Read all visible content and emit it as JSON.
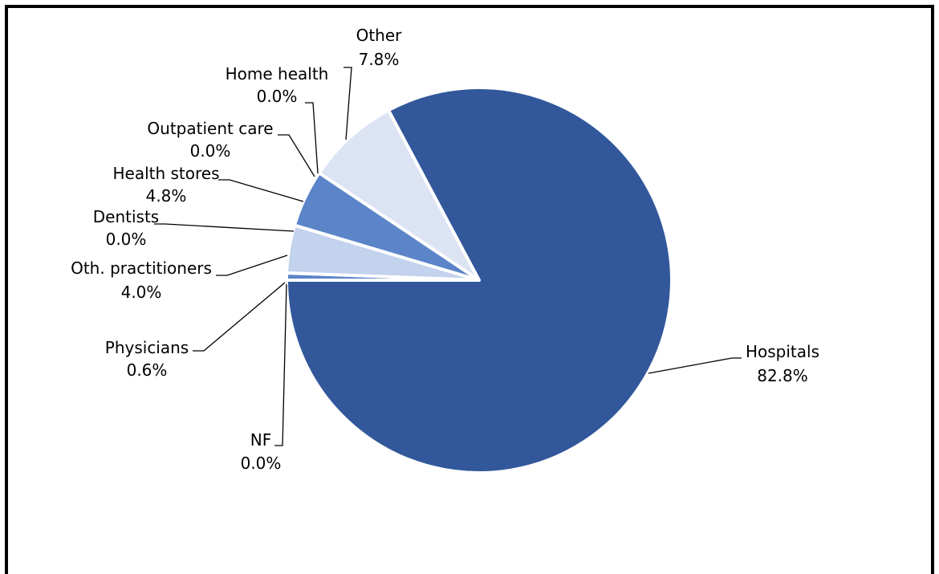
{
  "chart_data": {
    "type": "pie",
    "title": "",
    "start_angle_deg": 180,
    "direction": "clockwise",
    "slices": [
      {
        "name": "Physicians",
        "value": 0.6,
        "label": "0.6%",
        "color": "#5b84c9"
      },
      {
        "name": "Oth. practitioners",
        "value": 4.0,
        "label": "4.0%",
        "color": "#c3d2ed"
      },
      {
        "name": "Dentists",
        "value": 0.0,
        "label": "0.0%",
        "color": "#8ea9db"
      },
      {
        "name": "Health stores",
        "value": 4.8,
        "label": "4.8%",
        "color": "#5b84c9"
      },
      {
        "name": "Outpatient care",
        "value": 0.0,
        "label": "0.0%",
        "color": "#a9bfe5"
      },
      {
        "name": "Home health",
        "value": 0.0,
        "label": "0.0%",
        "color": "#8ea9db"
      },
      {
        "name": "Other",
        "value": 7.8,
        "label": "7.8%",
        "color": "#dce4f4"
      },
      {
        "name": "Hospitals",
        "value": 82.8,
        "label": "82.8%",
        "color": "#32589b"
      },
      {
        "name": "NF",
        "value": 0.0,
        "label": "0.0%",
        "color": "#8ea9db"
      }
    ],
    "legend": "none",
    "label_style": "outside-with-leader-lines"
  }
}
